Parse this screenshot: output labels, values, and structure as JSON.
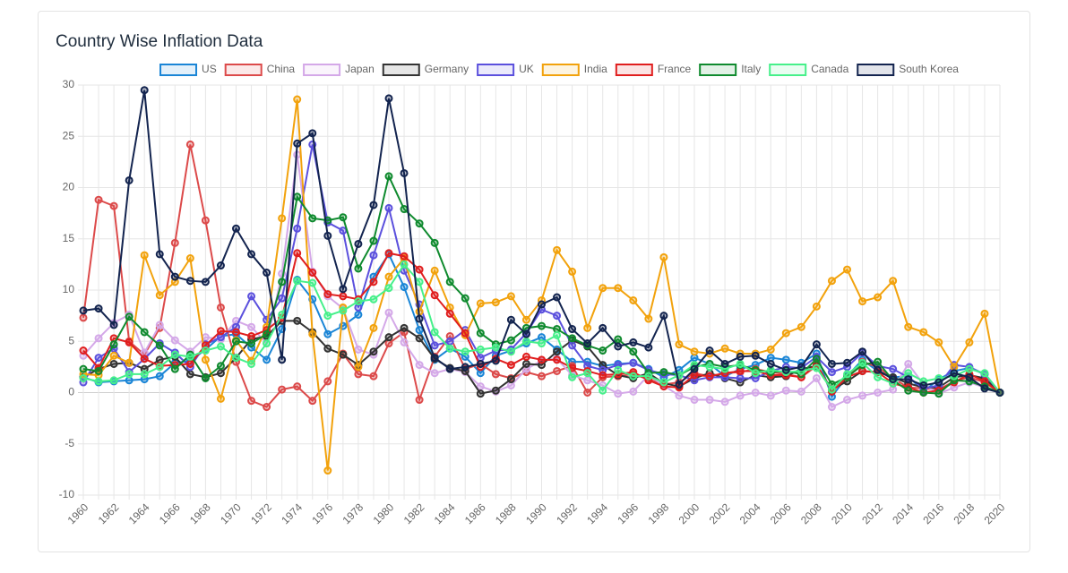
{
  "chart_data": {
    "type": "line",
    "title": "Country Wise Inflation Data",
    "categories": [
      "1960",
      null,
      "1962",
      null,
      "1964",
      null,
      "1966",
      null,
      "1968",
      null,
      "1970",
      null,
      "1972",
      null,
      "1974",
      null,
      "1976",
      null,
      "1978",
      null,
      "1980",
      null,
      "1982",
      null,
      "1984",
      null,
      "1986",
      null,
      "1988",
      null,
      "1990",
      null,
      "1992",
      null,
      "1994",
      null,
      "1996",
      null,
      "1998",
      null,
      "2000",
      null,
      "2002",
      null,
      "2004",
      null,
      "2006",
      null,
      "2008",
      null,
      "2010",
      null,
      "2012",
      null,
      "2014",
      null,
      "2016",
      null,
      "2018",
      null,
      "2020"
    ],
    "ylim": [
      -10,
      30
    ],
    "yticks": [
      -10,
      -5,
      0,
      5,
      10,
      15,
      20,
      25,
      30
    ],
    "grid": true,
    "legend": "top",
    "series": [
      {
        "name": "US",
        "color": "#1a85d6",
        "values": [
          1.5,
          1.0,
          1.1,
          1.2,
          1.3,
          1.6,
          2.9,
          3.1,
          4.2,
          5.5,
          5.7,
          4.4,
          3.2,
          6.2,
          11.0,
          9.1,
          5.7,
          6.5,
          7.6,
          11.3,
          13.5,
          10.3,
          6.1,
          3.2,
          4.3,
          3.5,
          1.9,
          3.6,
          4.1,
          4.8,
          5.4,
          4.2,
          3.0,
          3.0,
          2.6,
          2.8,
          2.9,
          2.3,
          1.5,
          2.2,
          3.4,
          2.8,
          1.6,
          2.3,
          2.7,
          3.4,
          3.2,
          2.9,
          3.8,
          -0.4,
          1.6,
          3.2,
          2.1,
          1.5,
          1.6,
          0.1,
          1.3,
          2.1,
          2.4,
          1.8,
          0
        ]
      },
      {
        "name": "China",
        "color": "#dc4a4a",
        "values": [
          7.3,
          18.8,
          18.2,
          5.0,
          3.7,
          6.3,
          14.6,
          24.2,
          16.8,
          8.3,
          3.0,
          -0.8,
          -1.4,
          0.3,
          0.6,
          -0.8,
          1.1,
          3.8,
          1.8,
          1.6,
          4.8,
          5.9,
          -0.7,
          3.5,
          5.5,
          2.3,
          2.8,
          1.8,
          1.4,
          2.0,
          1.6,
          2.1,
          2.6,
          0.0,
          1.5,
          1.6,
          1.8,
          1.3,
          0.8,
          1.0,
          1.9,
          1.6,
          1.9,
          2.0,
          2.3,
          2.0,
          1.8,
          1.5,
          2.6,
          0.3,
          1.5,
          3.0,
          2.5,
          1.4,
          0.5,
          0.4,
          0.3,
          1.1,
          1.5,
          1.0,
          0
        ]
      },
      {
        "name": "Japan",
        "color": "#d4a8e8",
        "values": [
          3.6,
          5.3,
          6.8,
          7.6,
          3.9,
          6.6,
          5.1,
          4.0,
          5.4,
          5.2,
          7.0,
          6.4,
          4.8,
          11.6,
          23.2,
          11.8,
          9.4,
          8.2,
          4.2,
          3.7,
          7.8,
          4.9,
          2.7,
          1.9,
          2.3,
          2.0,
          0.6,
          0.1,
          0.7,
          2.3,
          3.1,
          3.3,
          1.7,
          1.2,
          0.7,
          -0.1,
          0.1,
          1.7,
          0.7,
          -0.3,
          -0.7,
          -0.7,
          -0.9,
          -0.3,
          0.0,
          -0.3,
          0.2,
          0.1,
          1.4,
          -1.4,
          -0.7,
          -0.3,
          0.0,
          0.3,
          2.8,
          0.8,
          -0.1,
          0.5,
          1.0,
          0.5,
          0
        ]
      },
      {
        "name": "Germany",
        "color": "#333333",
        "values": [
          1.5,
          2.3,
          2.8,
          2.9,
          2.3,
          3.2,
          3.5,
          1.8,
          1.5,
          1.9,
          3.4,
          5.2,
          5.5,
          7.0,
          7.0,
          5.9,
          4.3,
          3.7,
          2.7,
          4.0,
          5.4,
          6.3,
          5.3,
          3.3,
          2.4,
          2.1,
          -0.1,
          0.2,
          1.3,
          2.8,
          2.7,
          4.0,
          5.1,
          4.5,
          2.7,
          1.7,
          1.4,
          1.9,
          0.9,
          0.6,
          1.4,
          1.9,
          1.4,
          1.0,
          1.7,
          1.5,
          1.6,
          2.3,
          2.6,
          0.3,
          1.1,
          2.1,
          2.0,
          1.5,
          0.9,
          0.5,
          0.5,
          1.5,
          1.7,
          1.4,
          0
        ]
      },
      {
        "name": "UK",
        "color": "#5b50dd",
        "values": [
          1.0,
          3.4,
          4.3,
          2.0,
          3.3,
          4.8,
          3.9,
          2.5,
          4.7,
          5.4,
          6.4,
          9.4,
          7.1,
          9.2,
          16.0,
          24.2,
          16.6,
          15.8,
          8.3,
          13.4,
          18.0,
          11.9,
          8.6,
          4.6,
          5.0,
          6.1,
          3.4,
          4.1,
          4.2,
          5.8,
          8.1,
          7.5,
          4.6,
          2.6,
          2.2,
          2.7,
          2.9,
          2.2,
          1.8,
          1.7,
          1.2,
          1.5,
          1.5,
          1.4,
          1.4,
          2.1,
          2.5,
          2.4,
          3.5,
          2.0,
          2.5,
          3.9,
          2.6,
          2.3,
          1.5,
          0.4,
          0.7,
          2.7,
          2.5,
          1.8,
          0
        ]
      },
      {
        "name": "India",
        "color": "#f2a20c",
        "values": [
          1.8,
          1.7,
          3.6,
          2.9,
          13.4,
          9.5,
          10.8,
          13.1,
          3.2,
          -0.6,
          5.1,
          3.1,
          6.4,
          17.0,
          28.6,
          5.7,
          -7.6,
          8.3,
          2.5,
          6.3,
          11.3,
          13.1,
          7.9,
          11.9,
          8.3,
          5.6,
          8.7,
          8.8,
          9.4,
          7.1,
          9.0,
          13.9,
          11.8,
          6.3,
          10.2,
          10.2,
          9.0,
          7.2,
          13.2,
          4.7,
          4.0,
          3.8,
          4.3,
          3.8,
          3.8,
          4.2,
          5.8,
          6.4,
          8.4,
          10.9,
          12.0,
          8.9,
          9.3,
          10.9,
          6.4,
          5.9,
          4.9,
          2.5,
          4.9,
          7.7,
          0
        ]
      },
      {
        "name": "France",
        "color": "#e01e1e",
        "values": [
          4.1,
          2.4,
          5.3,
          4.9,
          3.3,
          2.6,
          2.7,
          2.8,
          4.6,
          6.0,
          5.9,
          5.5,
          6.1,
          7.3,
          13.6,
          11.7,
          9.6,
          9.4,
          9.1,
          10.8,
          13.6,
          13.3,
          12.0,
          9.5,
          7.7,
          5.8,
          2.5,
          3.3,
          2.7,
          3.5,
          3.2,
          3.2,
          2.4,
          2.1,
          1.7,
          1.8,
          2.0,
          1.2,
          0.6,
          0.5,
          1.7,
          1.6,
          1.9,
          2.1,
          2.1,
          1.7,
          1.7,
          1.5,
          2.8,
          0.1,
          1.5,
          2.1,
          2.0,
          0.9,
          0.5,
          0.0,
          0.2,
          1.0,
          1.8,
          1.1,
          0
        ]
      },
      {
        "name": "Italy",
        "color": "#0f8a2e",
        "values": [
          2.3,
          2.1,
          4.7,
          7.4,
          5.9,
          4.6,
          2.3,
          3.7,
          1.4,
          2.6,
          5.0,
          4.8,
          5.7,
          10.8,
          19.1,
          17.0,
          16.8,
          17.1,
          12.1,
          14.8,
          21.1,
          17.9,
          16.5,
          14.6,
          10.8,
          9.2,
          5.8,
          4.7,
          5.1,
          6.3,
          6.5,
          6.2,
          5.3,
          4.6,
          4.1,
          5.2,
          4.0,
          1.9,
          2.0,
          1.7,
          2.5,
          2.8,
          2.5,
          2.7,
          2.2,
          2.0,
          2.1,
          1.8,
          3.3,
          0.8,
          1.5,
          2.7,
          3.0,
          1.2,
          0.2,
          0.0,
          -0.1,
          1.2,
          1.1,
          0.6,
          0
        ]
      },
      {
        "name": "Canada",
        "color": "#46f08a",
        "values": [
          1.4,
          1.1,
          1.2,
          1.8,
          1.8,
          2.5,
          3.7,
          3.5,
          4.1,
          4.5,
          3.4,
          2.8,
          4.8,
          7.6,
          10.9,
          10.7,
          7.5,
          8.0,
          8.9,
          9.1,
          10.2,
          12.5,
          10.8,
          5.9,
          4.3,
          4.0,
          4.2,
          4.4,
          4.0,
          5.0,
          4.8,
          5.6,
          1.5,
          1.9,
          0.2,
          2.2,
          1.6,
          1.6,
          1.0,
          1.7,
          2.7,
          2.5,
          2.3,
          2.8,
          1.9,
          2.2,
          2.0,
          2.1,
          2.4,
          0.3,
          1.8,
          2.9,
          1.5,
          0.9,
          1.9,
          1.1,
          1.4,
          1.6,
          2.3,
          1.9,
          0
        ]
      },
      {
        "name": "South Korea",
        "color": "#13244f",
        "values": [
          8.0,
          8.2,
          6.6,
          20.7,
          29.5,
          13.5,
          11.3,
          10.9,
          10.8,
          12.4,
          16.0,
          13.5,
          11.7,
          3.2,
          24.3,
          25.3,
          15.3,
          10.1,
          14.5,
          18.3,
          28.7,
          21.4,
          7.2,
          3.4,
          2.3,
          2.5,
          2.8,
          3.1,
          7.1,
          5.7,
          8.6,
          9.3,
          6.2,
          4.8,
          6.3,
          4.5,
          4.9,
          4.4,
          7.5,
          0.8,
          2.3,
          4.1,
          2.8,
          3.5,
          3.6,
          2.8,
          2.2,
          2.5,
          4.7,
          2.8,
          2.9,
          4.0,
          2.2,
          1.3,
          1.3,
          0.7,
          1.0,
          1.9,
          1.5,
          0.4,
          0
        ]
      }
    ]
  }
}
